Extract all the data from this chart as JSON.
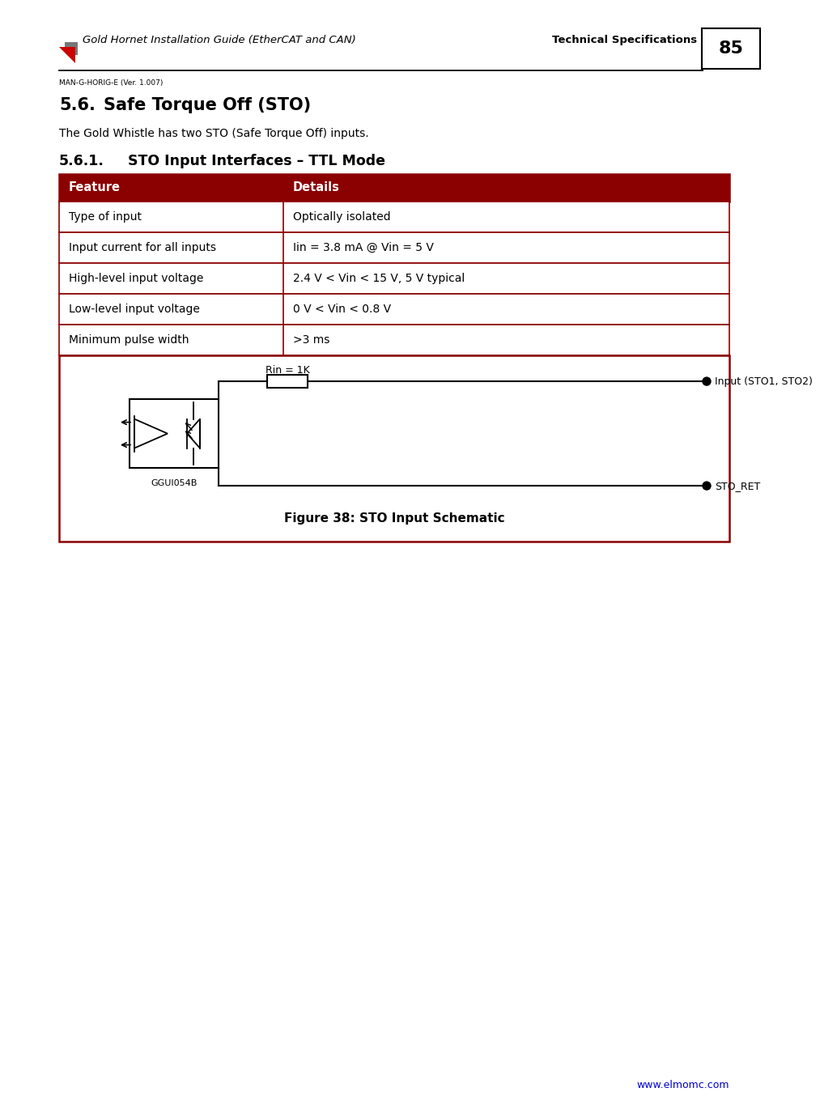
{
  "page_title": "Gold Hornet Installation Guide (EtherCAT and CAN)",
  "page_section": "Technical Specifications",
  "page_number": "85",
  "page_sub": "MAN-G-HORIG-E (Ver. 1.007)",
  "section_title": "5.6.   Safe Torque Off (STO)",
  "section_intro": "The Gold Whistle has two STO (Safe Torque Off) inputs.",
  "subsection_title": "5.6.1.      STO Input Interfaces – TTL Mode",
  "table_header": [
    "Feature",
    "Details"
  ],
  "table_rows": [
    [
      "Type of input",
      "Optically isolated"
    ],
    [
      "Input current for all inputs",
      "Iin = 3.8 mA @ Vin = 5 V"
    ],
    [
      "High-level input voltage",
      "2.4 V < Vin < 15 V, 5 V typical"
    ],
    [
      "Low-level input voltage",
      "0 V < Vin < 0.8 V"
    ],
    [
      "Minimum pulse width",
      ">3 ms"
    ]
  ],
  "figure_caption": "Figure 38: STO Input Schematic",
  "figure_label": "GGUI054B",
  "rin_label": "Rin = 1K",
  "input_label": "Input (STO1, STO2)",
  "ret_label": "STO_RET",
  "footer_url": "www.elmomc.com",
  "table_header_bg": "#8B0000",
  "table_border_color": "#8B0000",
  "background_color": "#FFFFFF",
  "footer_color": "#0000CC"
}
